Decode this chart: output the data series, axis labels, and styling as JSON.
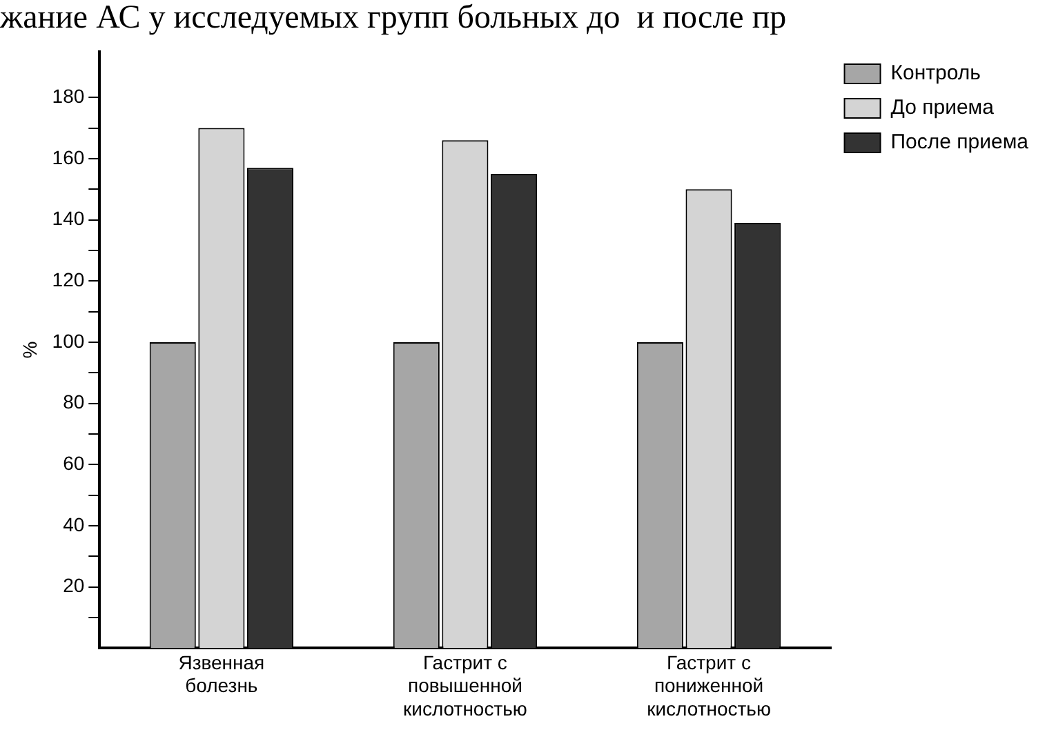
{
  "chart_data": {
    "type": "bar",
    "title": "жание АС у исследуемых групп больных до  и после пр",
    "ylabel": "%",
    "categories": [
      "Язвенная болезнь",
      "Гастрит с повышенной кислотностью",
      "Гастрит с пониженной кислотностью"
    ],
    "series": [
      {
        "name": "Контроль",
        "color": "#a6a6a6",
        "values": [
          100,
          100,
          100
        ]
      },
      {
        "name": "До приема",
        "color": "#d4d4d4",
        "values": [
          170,
          166,
          150
        ]
      },
      {
        "name": "После приема",
        "color": "#333333",
        "values": [
          157,
          155,
          139
        ]
      }
    ],
    "ylim": [
      0,
      195
    ],
    "yticks": [
      {
        "value": 10,
        "label": null
      },
      20,
      {
        "value": 30,
        "label": null
      },
      40,
      {
        "value": 50,
        "label": null
      },
      60,
      {
        "value": 70,
        "label": null
      },
      80,
      {
        "value": 90,
        "label": null
      },
      100,
      {
        "value": 110,
        "label": null
      },
      120,
      {
        "value": 130,
        "label": null
      },
      140,
      {
        "value": 150,
        "label": null
      },
      160,
      {
        "value": 170,
        "label": null
      },
      180
    ],
    "legend": "top right",
    "grid": false
  }
}
